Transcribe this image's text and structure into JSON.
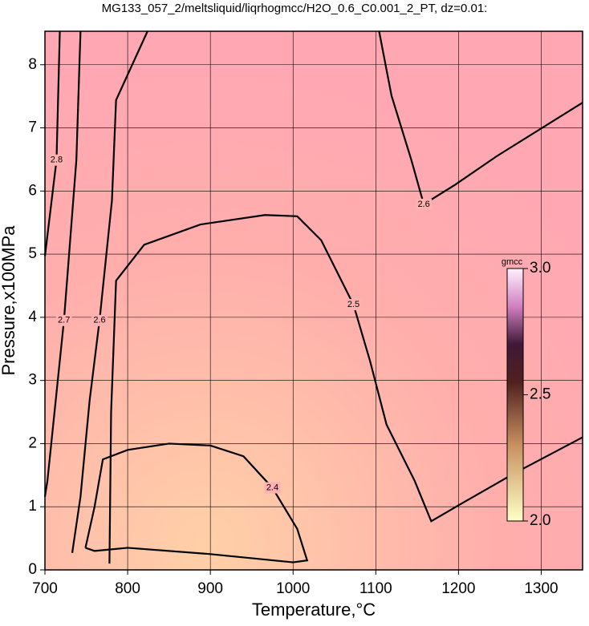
{
  "chart_data": {
    "type": "contour",
    "title": "MG133_057_2/meltsliquid/liqrhogmcc/H2O_0.6_C0.001_2_PT, dz=0.01:",
    "x_label": "Temperature,°C",
    "y_label": "Pressure,x100MPa",
    "xlim": [
      700,
      1350
    ],
    "xticks": [
      700,
      800,
      900,
      1000,
      1100,
      1200,
      1300
    ],
    "ylim": [
      0,
      8.53
    ],
    "yticks": [
      0,
      1,
      2,
      3,
      4,
      5,
      6,
      7,
      8
    ],
    "grid": true,
    "contours": [
      {
        "level": 2.4,
        "x": [
          749,
          760,
          770,
          800,
          850,
          900,
          940,
          975,
          1005,
          1017,
          1000,
          900,
          800,
          760,
          749
        ],
        "y": [
          0.35,
          1.0,
          1.75,
          1.9,
          2.0,
          1.97,
          1.8,
          1.3,
          0.65,
          0.15,
          0.12,
          0.25,
          0.35,
          0.3,
          0.35
        ]
      },
      {
        "level": 2.5,
        "x": [
          778,
          780,
          786,
          820,
          888,
          966,
          1005,
          1034,
          1073,
          1093,
          1113,
          1147,
          1167,
          1201,
          1269,
          1350
        ],
        "y": [
          0.1,
          2.5,
          4.58,
          5.15,
          5.47,
          5.62,
          5.6,
          5.22,
          4.2,
          3.31,
          2.3,
          1.41,
          0.77,
          1.03,
          1.54,
          2.1
        ]
      },
      {
        "level": 2.6,
        "x": [
          733,
          743,
          754,
          766,
          781,
          786,
          824
        ],
        "y": [
          0.27,
          1.16,
          2.68,
          3.95,
          5.85,
          7.44,
          8.53
        ]
      },
      {
        "level": 2.6,
        "x": [
          1104,
          1119,
          1143,
          1158,
          1196,
          1246,
          1350
        ],
        "y": [
          8.53,
          7.51,
          6.49,
          5.79,
          6.1,
          6.55,
          7.4
        ]
      },
      {
        "level": 2.7,
        "x": [
          700,
          703,
          723,
          738,
          743
        ],
        "y": [
          1.16,
          1.41,
          3.95,
          6.49,
          8.53
        ]
      },
      {
        "level": 2.8,
        "x": [
          700,
          714,
          718
        ],
        "y": [
          4.97,
          6.49,
          8.53
        ]
      }
    ],
    "colorbar": {
      "label": "gmcc",
      "lim": [
        2.0,
        3.0
      ],
      "ticks": [
        {
          "value": 2.0,
          "label": "2.0"
        },
        {
          "value": 2.5,
          "label": "2.5"
        },
        {
          "value": 3.0,
          "label": "3.0"
        }
      ]
    }
  }
}
